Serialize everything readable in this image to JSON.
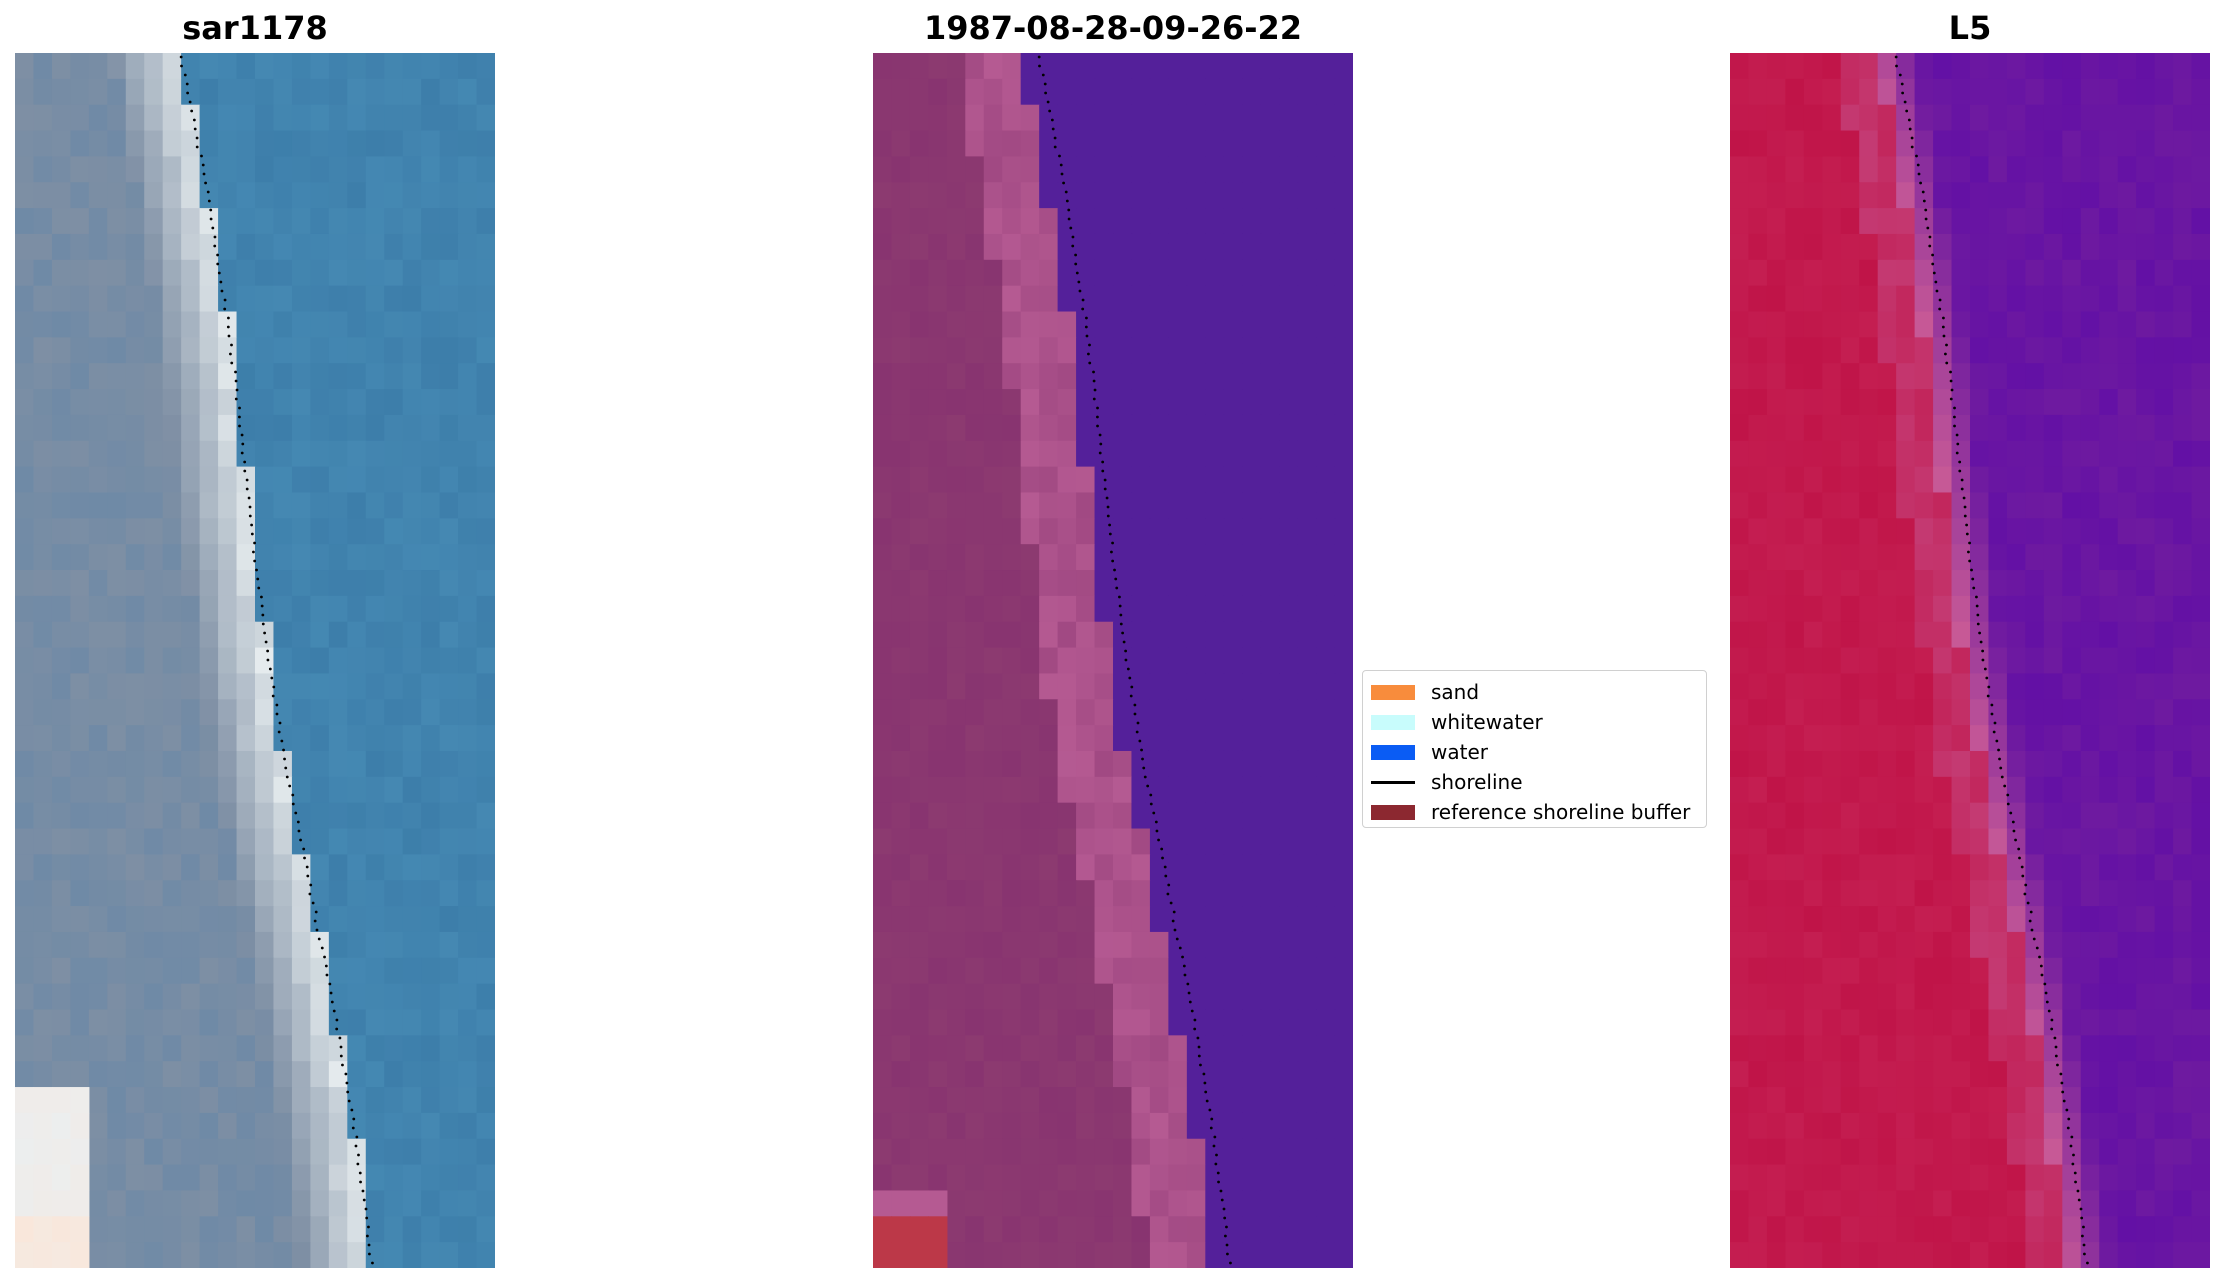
{
  "panels": [
    {
      "id": "rgb",
      "title": "sar1178",
      "kind": "rgb"
    },
    {
      "id": "classified",
      "title": "1987-08-28-09-26-22",
      "kind": "classified"
    },
    {
      "id": "index",
      "title": "L5",
      "kind": "index"
    }
  ],
  "legend": {
    "items": [
      {
        "label": "sand",
        "color": "#f88c3c",
        "type": "patch"
      },
      {
        "label": "whitewater",
        "color": "#c8fcfc",
        "type": "patch"
      },
      {
        "label": "water",
        "color": "#0a5cf4",
        "type": "patch"
      },
      {
        "label": "shoreline",
        "color": "#000000",
        "type": "line"
      },
      {
        "label": "reference shoreline buffer",
        "color": "#8c2830",
        "type": "patch"
      }
    ]
  },
  "colors": {
    "rgb_water": "#3d7eaa",
    "rgb_land": "#7e8fa4",
    "rgb_whitewater": "#e6ecee",
    "class_water": "#54209a",
    "class_land": "#883470",
    "class_beach": "#b55a92",
    "class_buffer": "#bc3848",
    "index_water": "#6e1aa0",
    "index_land": "#c01448",
    "index_transition": "#c85a96",
    "shoreline_dots": "#000000"
  }
}
